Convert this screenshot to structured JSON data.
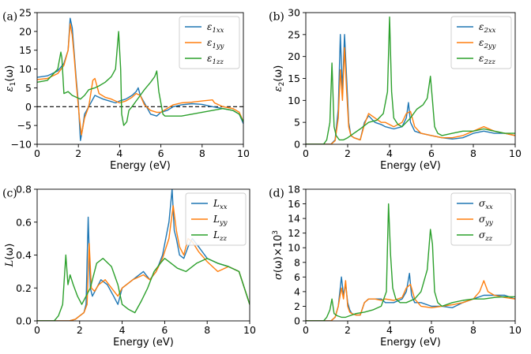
{
  "colors": {
    "xx": "#1f77b4",
    "yy": "#ff7f0e",
    "zz": "#2ca02c"
  },
  "chart_data": [
    {
      "type": "line",
      "panel_label": "(a)",
      "xlabel": "Energy (eV)",
      "ylabel_main": "ε",
      "ylabel_sub": "1",
      "ylabel_tail": "(ω)",
      "xlim": [
        0,
        10
      ],
      "ylim": [
        -10,
        25
      ],
      "xticks": [
        0,
        2,
        4,
        6,
        8,
        10
      ],
      "yticks": [
        -10,
        -5,
        0,
        5,
        10,
        15,
        20,
        25
      ],
      "legend_position": "top-right",
      "zero_line": true,
      "series": [
        {
          "name": "ε1xx",
          "main": "ε",
          "sub": "1xx",
          "key": "xx",
          "x": [
            0,
            0.5,
            1.0,
            1.3,
            1.5,
            1.6,
            1.7,
            1.8,
            1.9,
            2.0,
            2.05,
            2.1,
            2.2,
            2.3,
            2.5,
            2.8,
            3.0,
            3.2,
            3.5,
            3.8,
            4.0,
            4.3,
            4.6,
            4.8,
            4.9,
            5.0,
            5.2,
            5.5,
            5.8,
            6.0,
            6.3,
            6.6,
            7.0,
            7.5,
            8.0,
            8.5,
            9.0,
            9.5,
            9.8,
            10.0
          ],
          "y": [
            7.8,
            8.2,
            9.5,
            11.5,
            15,
            23.5,
            21,
            14,
            7,
            1,
            -4,
            -9,
            -6,
            -2,
            0,
            3,
            2.5,
            2,
            1.5,
            1,
            1.5,
            2,
            3,
            4,
            5,
            3,
            1,
            -2,
            -2.5,
            -1.5,
            -1,
            0,
            0.5,
            0.8,
            0.6,
            0,
            -0.5,
            -1,
            -2,
            -4.5
          ]
        },
        {
          "name": "ε1yy",
          "main": "ε",
          "sub": "1yy",
          "key": "yy",
          "x": [
            0,
            0.5,
            1.0,
            1.3,
            1.5,
            1.6,
            1.7,
            1.8,
            1.9,
            2.0,
            2.05,
            2.15,
            2.3,
            2.5,
            2.7,
            2.8,
            3.0,
            3.3,
            3.6,
            3.8,
            4.0,
            4.3,
            4.6,
            4.8,
            5.0,
            5.2,
            5.5,
            5.8,
            6.0,
            6.3,
            6.6,
            7.0,
            7.5,
            8.0,
            8.5,
            8.6,
            9.0,
            9.5,
            9.8,
            10.0
          ],
          "y": [
            7.2,
            7.5,
            8.8,
            11,
            15,
            22,
            19,
            13,
            6,
            0,
            -3,
            -7.5,
            -3,
            0,
            7,
            7.5,
            3.5,
            2.5,
            2,
            1.5,
            1,
            1.5,
            2.5,
            3.5,
            3,
            0.5,
            -1,
            -1.5,
            -1.5,
            -0.5,
            0.5,
            1,
            1.2,
            1.5,
            1.8,
            1,
            0,
            -0.5,
            -1.5,
            -4
          ]
        },
        {
          "name": "ε1zz",
          "main": "ε",
          "sub": "1zz",
          "key": "zz",
          "x": [
            0,
            0.5,
            1.0,
            1.15,
            1.2,
            1.3,
            1.5,
            1.7,
            1.9,
            2.1,
            2.3,
            2.5,
            2.8,
            3.0,
            3.3,
            3.6,
            3.8,
            3.95,
            4.05,
            4.1,
            4.2,
            4.35,
            4.45,
            4.6,
            4.8,
            5.0,
            5.2,
            5.5,
            5.7,
            5.8,
            5.9,
            6.1,
            6.2,
            6.5,
            7.0,
            7.5,
            8.0,
            8.5,
            9.0,
            9.5,
            9.8,
            10.0
          ],
          "y": [
            6.5,
            7,
            10,
            14.5,
            13,
            3.5,
            4,
            3,
            2.5,
            2,
            3,
            4.5,
            5,
            5.5,
            6.5,
            8,
            10,
            20,
            10,
            -2,
            -5,
            -4,
            -1,
            0,
            1.5,
            3,
            4.5,
            6.5,
            8,
            9.5,
            4,
            -2,
            -2.5,
            -2.5,
            -2.5,
            -2,
            -1.5,
            -1,
            -0.5,
            -1,
            -2,
            -4
          ]
        }
      ]
    },
    {
      "type": "line",
      "panel_label": "(b)",
      "xlabel": "Energy (eV)",
      "ylabel_main": "ε",
      "ylabel_sub": "2",
      "ylabel_tail": "(ω)",
      "xlim": [
        0,
        10
      ],
      "ylim": [
        0,
        30
      ],
      "xticks": [
        0,
        2,
        4,
        6,
        8,
        10
      ],
      "yticks": [
        0,
        5,
        10,
        15,
        20,
        25,
        30
      ],
      "legend_position": "top-right",
      "zero_line": false,
      "series": [
        {
          "name": "ε2xx",
          "main": "ε",
          "sub": "2xx",
          "key": "xx",
          "x": [
            0,
            1.2,
            1.4,
            1.55,
            1.65,
            1.75,
            1.85,
            1.95,
            2.05,
            2.15,
            2.3,
            2.6,
            2.8,
            3.0,
            3.3,
            3.6,
            3.8,
            4.2,
            4.6,
            4.8,
            4.9,
            5.0,
            5.2,
            5.5,
            6.0,
            6.5,
            7.0,
            7.5,
            8.0,
            8.5,
            9.0,
            9.5,
            10.0
          ],
          "y": [
            0,
            0,
            1,
            8,
            25,
            12,
            25,
            15,
            5,
            2,
            1.5,
            1,
            5,
            6.5,
            5,
            4.5,
            4,
            3.5,
            4,
            6,
            9.5,
            5,
            3,
            2.5,
            2,
            1.5,
            1.2,
            1.5,
            2.5,
            3,
            2.5,
            2.5,
            2
          ]
        },
        {
          "name": "ε2yy",
          "main": "ε",
          "sub": "2yy",
          "key": "yy",
          "x": [
            0,
            1.2,
            1.4,
            1.55,
            1.65,
            1.75,
            1.85,
            1.95,
            2.05,
            2.15,
            2.3,
            2.6,
            2.8,
            3.0,
            3.3,
            3.6,
            3.8,
            4.2,
            4.6,
            4.8,
            5.0,
            5.2,
            5.5,
            6.0,
            6.5,
            7.0,
            7.5,
            8.0,
            8.5,
            9.0,
            9.5,
            10.0
          ],
          "y": [
            0,
            0,
            0.8,
            6,
            17,
            10,
            22,
            12,
            4,
            2,
            1.5,
            1,
            4.5,
            7,
            6,
            5,
            5,
            4,
            5,
            7,
            7.5,
            4,
            2.5,
            2,
            1.5,
            1.5,
            2,
            3,
            4,
            3,
            2.5,
            2
          ]
        },
        {
          "name": "ε2zz",
          "main": "ε",
          "sub": "2zz",
          "key": "zz",
          "x": [
            0,
            0.85,
            1.0,
            1.15,
            1.25,
            1.35,
            1.45,
            1.6,
            1.8,
            2.0,
            2.3,
            2.6,
            3.0,
            3.4,
            3.7,
            3.9,
            4.0,
            4.1,
            4.2,
            4.4,
            4.6,
            4.8,
            5.0,
            5.3,
            5.6,
            5.8,
            5.95,
            6.05,
            6.15,
            6.3,
            6.5,
            7.0,
            7.5,
            8.0,
            8.5,
            9.0,
            9.5,
            10.0
          ],
          "y": [
            0,
            0,
            1,
            5,
            18.5,
            4,
            2,
            1,
            1,
            1.5,
            2.5,
            3.5,
            5,
            5.5,
            7,
            12,
            29,
            12,
            6,
            4.5,
            4,
            5,
            6,
            8,
            9,
            10.5,
            15.5,
            10,
            4,
            2.5,
            2,
            2.5,
            3,
            3,
            3.5,
            3,
            2.5,
            2.5
          ]
        }
      ]
    },
    {
      "type": "line",
      "panel_label": "(c)",
      "xlabel": "Energy (eV)",
      "ylabel_main": "L",
      "ylabel_sub": "",
      "ylabel_tail": "(ω)",
      "xlim": [
        0,
        10
      ],
      "ylim": [
        0,
        0.8
      ],
      "xticks": [
        0,
        2,
        4,
        6,
        8,
        10
      ],
      "yticks": [
        0.0,
        0.2,
        0.4,
        0.6,
        0.8
      ],
      "legend_position": "top-right",
      "zero_line": false,
      "series": [
        {
          "name": "Lxx",
          "main": "L",
          "sub": "xx",
          "key": "xx",
          "x": [
            0,
            1.5,
            1.8,
            2.0,
            2.2,
            2.3,
            2.4,
            2.5,
            2.6,
            2.8,
            3.0,
            3.3,
            3.6,
            3.8,
            4.0,
            4.5,
            5.0,
            5.3,
            5.6,
            5.9,
            6.2,
            6.35,
            6.45,
            6.55,
            6.7,
            6.9,
            7.1,
            7.3,
            7.6,
            8.0,
            8.5,
            9.0,
            9.5,
            10.0
          ],
          "y": [
            0,
            0,
            0.01,
            0.03,
            0.05,
            0.1,
            0.63,
            0.2,
            0.15,
            0.2,
            0.25,
            0.22,
            0.15,
            0.1,
            0.2,
            0.25,
            0.3,
            0.25,
            0.3,
            0.4,
            0.6,
            0.8,
            0.55,
            0.5,
            0.4,
            0.38,
            0.45,
            0.5,
            0.45,
            0.38,
            0.35,
            0.33,
            0.3,
            0.1
          ]
        },
        {
          "name": "Lyy",
          "main": "L",
          "sub": "yy",
          "key": "yy",
          "x": [
            0,
            1.5,
            1.8,
            2.0,
            2.2,
            2.35,
            2.45,
            2.55,
            2.7,
            2.9,
            3.2,
            3.5,
            3.8,
            4.0,
            4.5,
            5.0,
            5.3,
            5.6,
            5.9,
            6.2,
            6.4,
            6.55,
            6.7,
            6.9,
            7.1,
            7.3,
            7.6,
            8.0,
            8.5,
            9.0,
            9.5,
            10.0
          ],
          "y": [
            0,
            0,
            0.01,
            0.03,
            0.05,
            0.1,
            0.47,
            0.2,
            0.18,
            0.22,
            0.25,
            0.2,
            0.15,
            0.2,
            0.25,
            0.28,
            0.25,
            0.3,
            0.38,
            0.5,
            0.7,
            0.55,
            0.45,
            0.4,
            0.5,
            0.48,
            0.42,
            0.36,
            0.3,
            0.33,
            0.3,
            0.1
          ]
        },
        {
          "name": "Lzz",
          "main": "L",
          "sub": "zz",
          "key": "zz",
          "x": [
            0,
            0.8,
            1.0,
            1.2,
            1.35,
            1.45,
            1.55,
            1.7,
            1.9,
            2.1,
            2.3,
            2.5,
            2.8,
            3.1,
            3.5,
            3.8,
            4.0,
            4.3,
            4.6,
            4.9,
            5.2,
            5.5,
            5.8,
            6.0,
            6.3,
            6.6,
            7.0,
            7.5,
            8.0,
            8.5,
            9.0,
            9.5,
            10.0
          ],
          "y": [
            0,
            0,
            0.03,
            0.1,
            0.4,
            0.22,
            0.28,
            0.22,
            0.15,
            0.1,
            0.15,
            0.2,
            0.35,
            0.38,
            0.33,
            0.22,
            0.1,
            0.07,
            0.05,
            0.12,
            0.2,
            0.3,
            0.35,
            0.38,
            0.35,
            0.32,
            0.3,
            0.35,
            0.38,
            0.35,
            0.33,
            0.3,
            0.1
          ]
        }
      ]
    },
    {
      "type": "line",
      "panel_label": "(d)",
      "xlabel": "Energy (eV)",
      "ylabel_main": "σ",
      "ylabel_sub": "",
      "ylabel_tail": "(ω)×10",
      "ylabel_sup": "3",
      "xlim": [
        0,
        10
      ],
      "ylim": [
        0,
        18
      ],
      "xticks": [
        0,
        2,
        4,
        6,
        8,
        10
      ],
      "yticks": [
        0,
        2,
        4,
        6,
        8,
        10,
        12,
        14,
        16,
        18
      ],
      "legend_position": "top-right",
      "zero_line": false,
      "series": [
        {
          "name": "σxx",
          "main": "σ",
          "sub": "xx",
          "key": "xx",
          "x": [
            0,
            1.2,
            1.4,
            1.55,
            1.7,
            1.8,
            1.9,
            2.0,
            2.1,
            2.2,
            2.4,
            2.6,
            2.8,
            3.0,
            3.3,
            3.6,
            3.8,
            4.2,
            4.6,
            4.8,
            4.95,
            5.05,
            5.2,
            5.5,
            6.0,
            6.5,
            7.0,
            7.5,
            8.0,
            8.5,
            9.0,
            9.5,
            10.0
          ],
          "y": [
            0,
            0,
            0.5,
            2,
            6,
            3.5,
            5,
            2.5,
            1.5,
            1,
            0.8,
            0.8,
            2.5,
            3,
            3,
            3,
            2.5,
            2.5,
            3,
            4,
            6.5,
            3.5,
            2.5,
            2.5,
            2,
            2,
            1.8,
            2.5,
            3,
            3.5,
            3.5,
            3.5,
            3
          ]
        },
        {
          "name": "σyy",
          "main": "σ",
          "sub": "yy",
          "key": "yy",
          "x": [
            0,
            1.2,
            1.4,
            1.55,
            1.7,
            1.8,
            1.9,
            2.0,
            2.1,
            2.2,
            2.4,
            2.6,
            2.8,
            3.0,
            3.3,
            3.6,
            3.8,
            4.2,
            4.6,
            4.8,
            5.0,
            5.2,
            5.5,
            6.0,
            6.5,
            7.0,
            7.5,
            8.0,
            8.3,
            8.5,
            8.7,
            9.0,
            9.5,
            10.0
          ],
          "y": [
            0,
            0,
            0.5,
            2,
            4.5,
            3,
            5.5,
            2,
            1.2,
            1,
            0.8,
            0.8,
            2.5,
            3,
            3,
            2.8,
            3,
            2.8,
            3.2,
            4.5,
            5,
            3,
            2,
            1.8,
            2,
            2.2,
            2.5,
            3,
            4,
            5.5,
            4,
            3.5,
            3.2,
            3
          ]
        },
        {
          "name": "σzz",
          "main": "σ",
          "sub": "zz",
          "key": "zz",
          "x": [
            0,
            0.85,
            1.0,
            1.15,
            1.25,
            1.35,
            1.5,
            1.7,
            1.9,
            2.1,
            2.4,
            2.8,
            3.2,
            3.6,
            3.85,
            3.95,
            4.05,
            4.15,
            4.3,
            4.5,
            4.8,
            5.2,
            5.5,
            5.8,
            5.95,
            6.05,
            6.15,
            6.3,
            6.5,
            7.0,
            7.5,
            8.0,
            8.5,
            9.0,
            9.5,
            10.0
          ],
          "y": [
            0,
            0,
            0.5,
            1.5,
            3,
            1,
            0.7,
            0.5,
            0.5,
            0.7,
            1,
            1.2,
            1.5,
            2,
            4,
            16,
            9,
            4.5,
            3,
            2.5,
            2.5,
            3,
            4,
            7,
            12.5,
            10.5,
            4,
            2.5,
            2,
            2.5,
            2.8,
            3,
            3,
            3.2,
            3.3,
            3.3
          ]
        }
      ]
    }
  ]
}
